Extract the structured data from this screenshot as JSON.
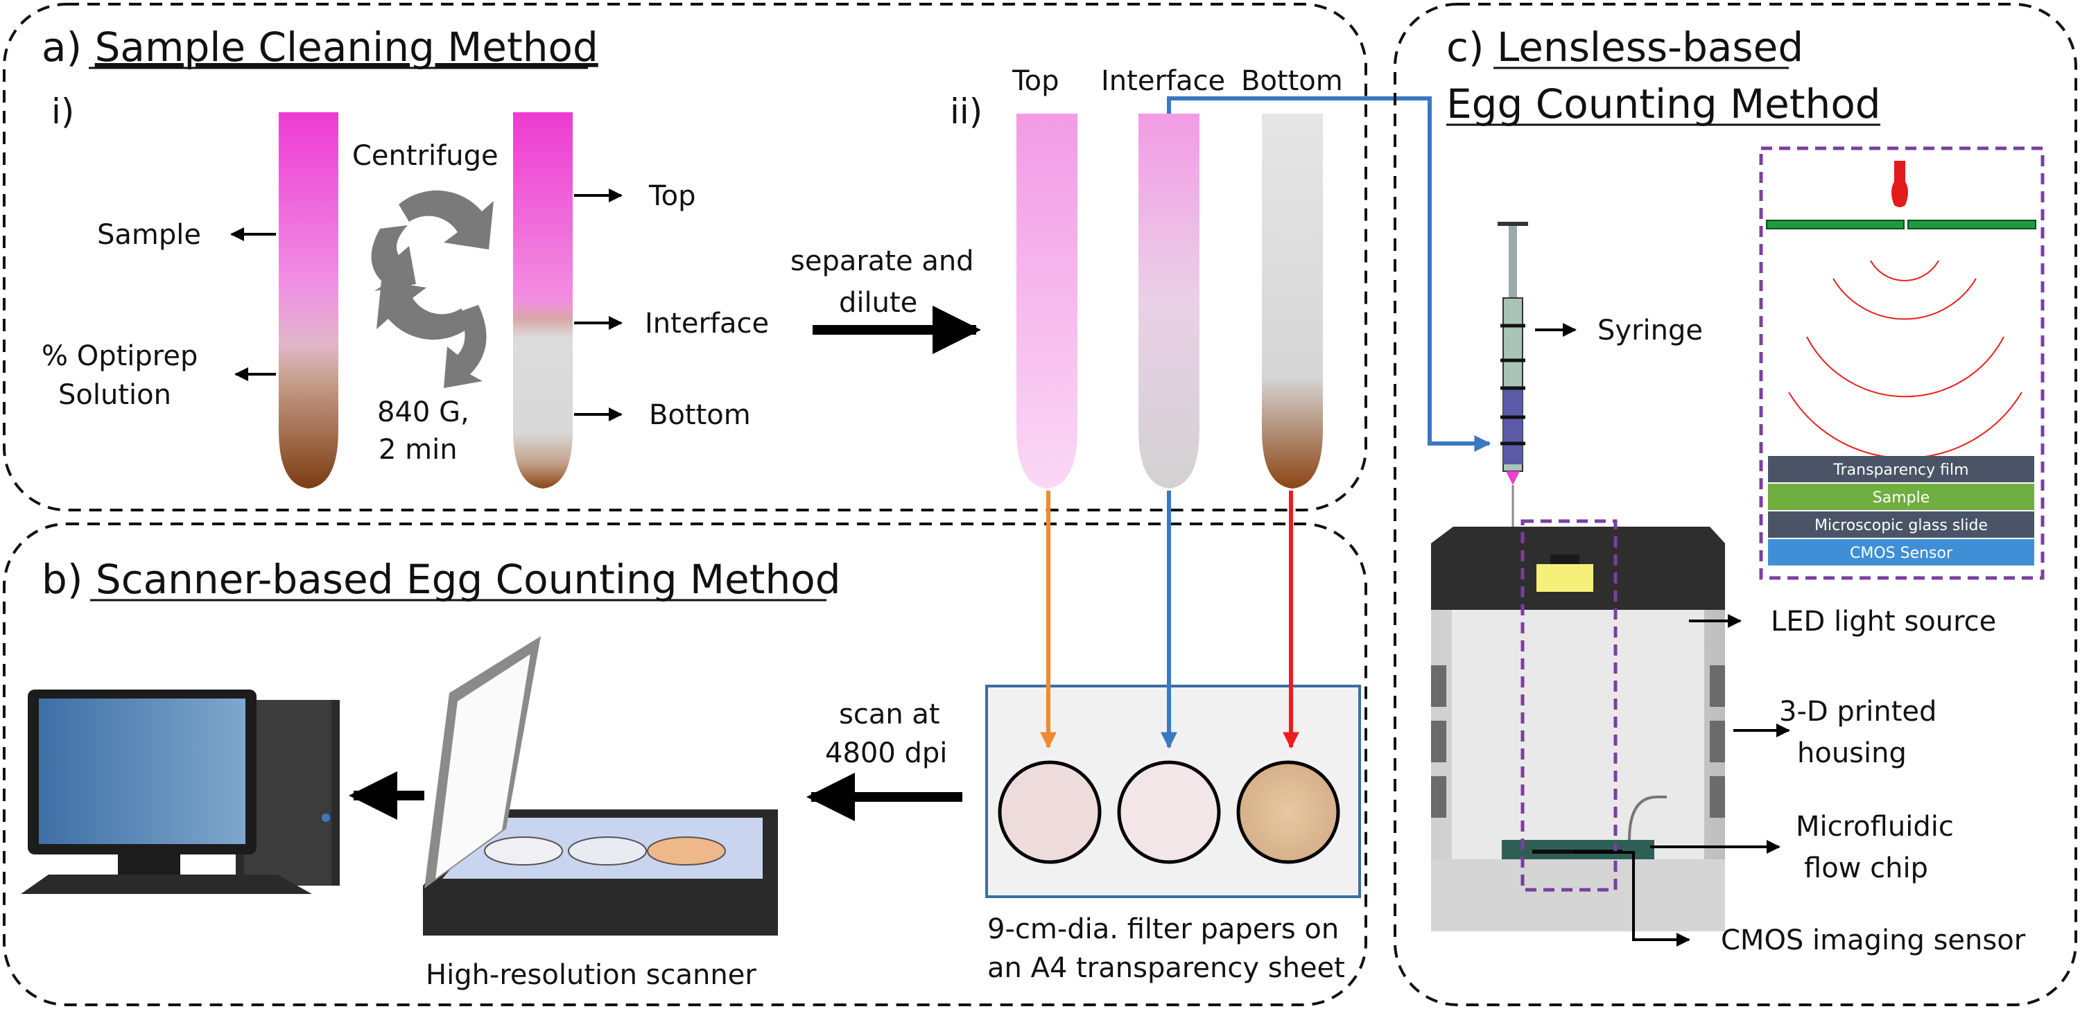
{
  "panel_a": {
    "title_prefix": "a) ",
    "title": "Sample Cleaning Method",
    "step_i": "i)",
    "step_ii": "ii)",
    "centrifuge": "Centrifuge",
    "speed_line1": "840 G,",
    "speed_line2": "2 min",
    "sample_label": "Sample",
    "optiprep_line1": "% Optiprep",
    "optiprep_line2": "Solution",
    "layer_top": "Top",
    "layer_interface": "Interface",
    "layer_bottom": "Bottom",
    "separate_line1": "separate and",
    "separate_line2": "dilute",
    "tube_top": "Top",
    "tube_interface": "Interface",
    "tube_bottom": "Bottom"
  },
  "panel_b": {
    "title_prefix": "b) ",
    "title": "Scanner-based Egg Counting Method",
    "scan_line1": "scan at",
    "scan_line2": "4800 dpi",
    "filter_line1": "9-cm-dia. filter papers on",
    "filter_line2": "an A4 transparency sheet",
    "scanner_label": "High-resolution scanner"
  },
  "panel_c": {
    "title_prefix": "c) ",
    "title_line1": "Lensless-based",
    "title_line2": "Egg Counting Method",
    "syringe": "Syringe",
    "led": "LED light source",
    "housing_line1": "3-D printed",
    "housing_line2": "housing",
    "chip_line1": "Microfluidic",
    "chip_line2": "flow chip",
    "cmos": "CMOS imaging sensor",
    "layers": [
      "Transparency film",
      "Sample",
      "Microscopic glass slide",
      "CMOS Sensor"
    ]
  },
  "colors": {
    "pink": "#ec3fcf",
    "brown": "#8b4513",
    "orange_arrow": "#f08a30",
    "blue_arrow": "#3a78c2",
    "red_arrow": "#ee1c1c",
    "purple_dash": "#7a3fa0",
    "monitor_screen": "#5b8fc0"
  }
}
